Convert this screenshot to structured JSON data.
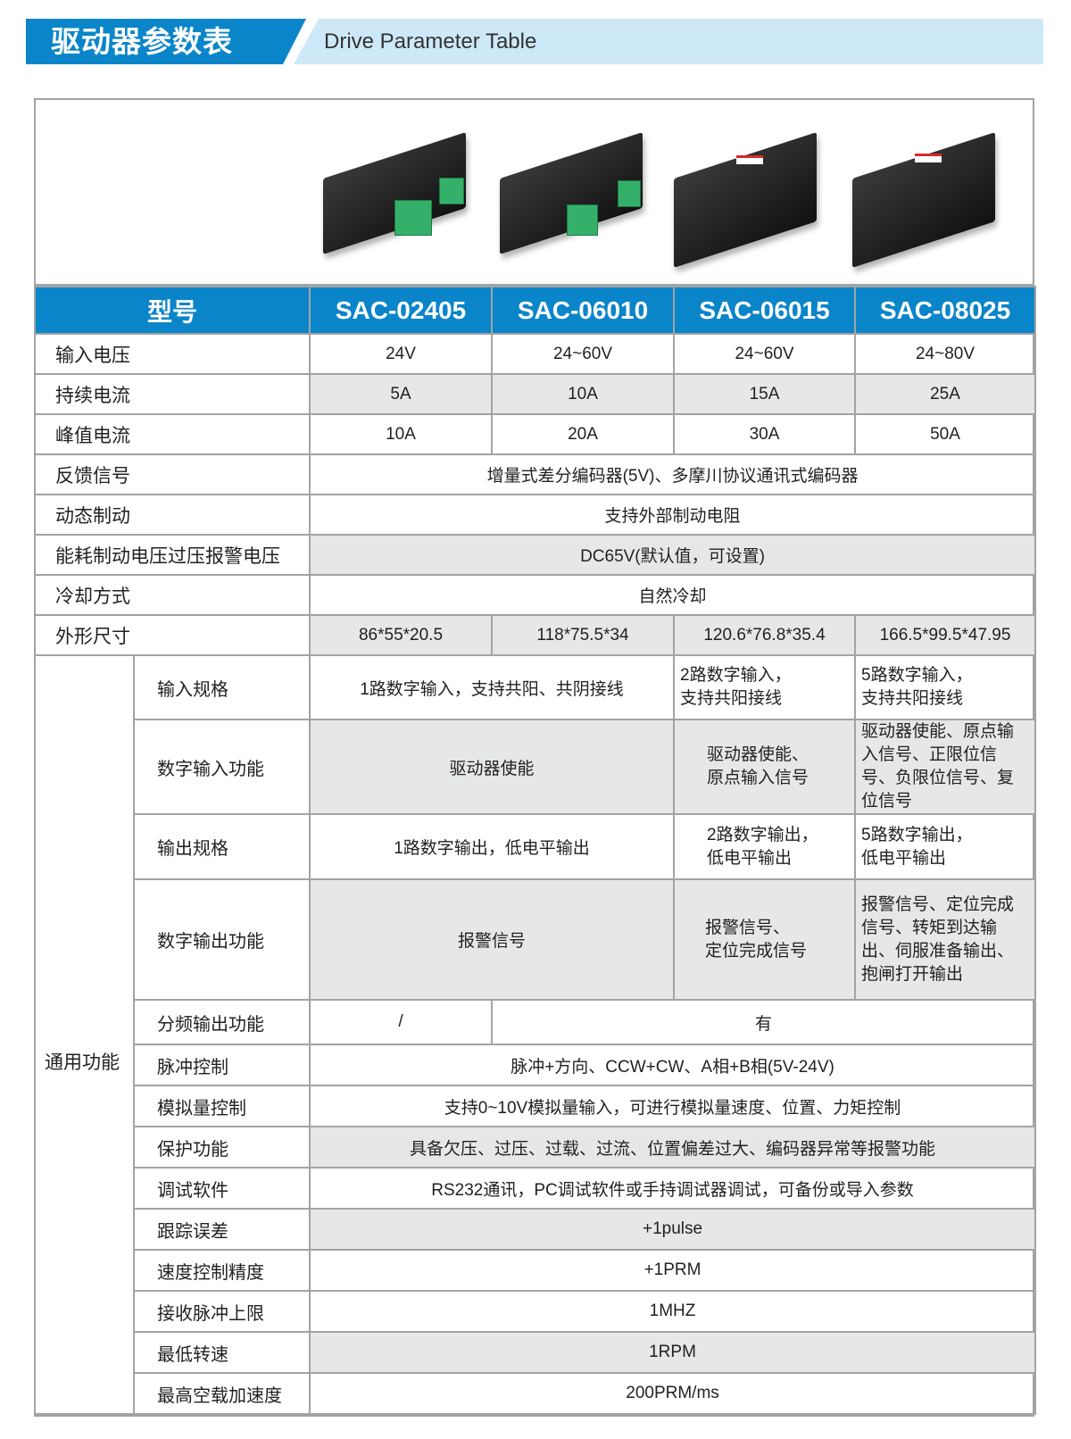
{
  "header": {
    "title_cn": "驱动器参数表",
    "title_en": "Drive Parameter Table"
  },
  "colors": {
    "brand_blue": "#0b85c9",
    "light_band": "#cde9f8",
    "shaded_cell": "#e6e7e9",
    "connector_green": "#35b06a"
  },
  "products": [
    "ABC206 drive image",
    "ABC206 drive image",
    "large drive image",
    "large drive image"
  ],
  "table": {
    "model_label": "型号",
    "models": [
      "SAC-02405",
      "SAC-06010",
      "SAC-06015",
      "SAC-08025"
    ],
    "rows": [
      {
        "label": "输入电压",
        "values": [
          "24V",
          "24~60V",
          "24~60V",
          "24~80V"
        ]
      },
      {
        "label": "持续电流",
        "values": [
          "5A",
          "10A",
          "15A",
          "25A"
        ]
      },
      {
        "label": "峰值电流",
        "values": [
          "10A",
          "20A",
          "30A",
          "50A"
        ]
      },
      {
        "label": "反馈信号",
        "value": "增量式差分编码器(5V)、多摩川协议通讯式编码器"
      },
      {
        "label": "动态制动",
        "value": "支持外部制动电阻"
      },
      {
        "label": "能耗制动电压过压报警电压",
        "value": "DC65V(默认值，可设置)"
      },
      {
        "label": "冷却方式",
        "value": "自然冷却"
      },
      {
        "label": "外形尺寸",
        "values": [
          "86*55*20.5",
          "118*75.5*34",
          "120.6*76.8*35.4",
          "166.5*99.5*47.95"
        ]
      }
    ],
    "general_label": "通用功能",
    "general": {
      "input_spec": {
        "label": "输入规格",
        "v12": "1路数字输入，支持共阳、共阴接线",
        "v3": "2路数字输入，\n支持共阳接线",
        "v4": "5路数字输入，\n支持共阳接线"
      },
      "input_func": {
        "label": "数字输入功能",
        "v12": "驱动器使能",
        "v3": "驱动器使能、\n原点输入信号",
        "v4": "驱动器使能、原点输入信号、正限位信号、负限位信号、复位信号"
      },
      "output_spec": {
        "label": "输出规格",
        "v12": "1路数字输出，低电平输出",
        "v3": "2路数字输出，\n低电平输出",
        "v4": "5路数字输出，\n低电平输出"
      },
      "output_func": {
        "label": "数字输出功能",
        "v12": "报警信号",
        "v3": "报警信号、\n定位完成信号",
        "v4": "报警信号、定位完成信号、转矩到达输出、伺服准备输出、抱闸打开输出"
      },
      "divider": {
        "label": "分频输出功能",
        "v1": "/",
        "v234": "有"
      },
      "rows": [
        {
          "label": "脉冲控制",
          "value": "脉冲+方向、CCW+CW、A相+B相(5V-24V)"
        },
        {
          "label": "模拟量控制",
          "value": "支持0~10V模拟量输入，可进行模拟量速度、位置、力矩控制"
        },
        {
          "label": "保护功能",
          "value": "具备欠压、过压、过载、过流、位置偏差过大、编码器异常等报警功能"
        },
        {
          "label": "调试软件",
          "value": "RS232通讯，PC调试软件或手持调试器调试，可备份或导入参数"
        },
        {
          "label": "跟踪误差",
          "value": "+1pulse"
        },
        {
          "label": "速度控制精度",
          "value": "+1PRM"
        },
        {
          "label": "接收脉冲上限",
          "value": "1MHZ"
        },
        {
          "label": "最低转速",
          "value": "1RPM"
        },
        {
          "label": "最高空载加速度",
          "value": "200PRM/ms"
        }
      ]
    }
  }
}
